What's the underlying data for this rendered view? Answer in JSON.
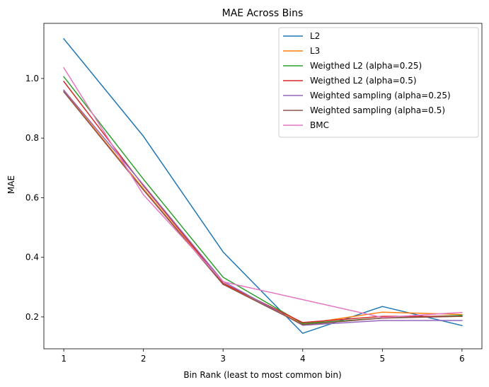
{
  "chart_data": {
    "type": "line",
    "title": "MAE Across Bins",
    "xlabel": "Bin Rank (least to most common bin)",
    "ylabel": "MAE",
    "x": [
      1,
      2,
      3,
      4,
      5,
      6
    ],
    "xticks": [
      "1",
      "2",
      "3",
      "4",
      "5",
      "6"
    ],
    "yticks": [
      "0.2",
      "0.4",
      "0.6",
      "0.8",
      "1.0"
    ],
    "xlim": [
      0.75,
      6.25
    ],
    "ylim": [
      0.093,
      1.185
    ],
    "grid": false,
    "legend_position": "top-right",
    "series": [
      {
        "name": "L2",
        "color": "#1f77b4",
        "values": [
          1.133,
          0.806,
          0.418,
          0.145,
          0.235,
          0.171
        ]
      },
      {
        "name": "L3",
        "color": "#ff7f0e",
        "values": [
          0.958,
          0.63,
          0.31,
          0.176,
          0.216,
          0.208
        ]
      },
      {
        "name": "Weigthed L2 (alpha=0.25)",
        "color": "#2ca02c",
        "values": [
          1.006,
          0.662,
          0.333,
          0.178,
          0.196,
          0.205
        ]
      },
      {
        "name": "Weigthed L2 (alpha=0.5)",
        "color": "#d62728",
        "values": [
          0.99,
          0.64,
          0.313,
          0.181,
          0.202,
          0.202
        ]
      },
      {
        "name": "Weighted sampling (alpha=0.25)",
        "color": "#9467bd",
        "values": [
          0.961,
          0.643,
          0.319,
          0.172,
          0.188,
          0.188
        ]
      },
      {
        "name": "Weighted sampling (alpha=0.5)",
        "color": "#8c564b",
        "values": [
          0.955,
          0.626,
          0.309,
          0.174,
          0.196,
          0.202
        ]
      },
      {
        "name": "BMC",
        "color": "#e377c2",
        "values": [
          1.036,
          0.61,
          0.318,
          0.258,
          0.198,
          0.215
        ]
      }
    ]
  }
}
